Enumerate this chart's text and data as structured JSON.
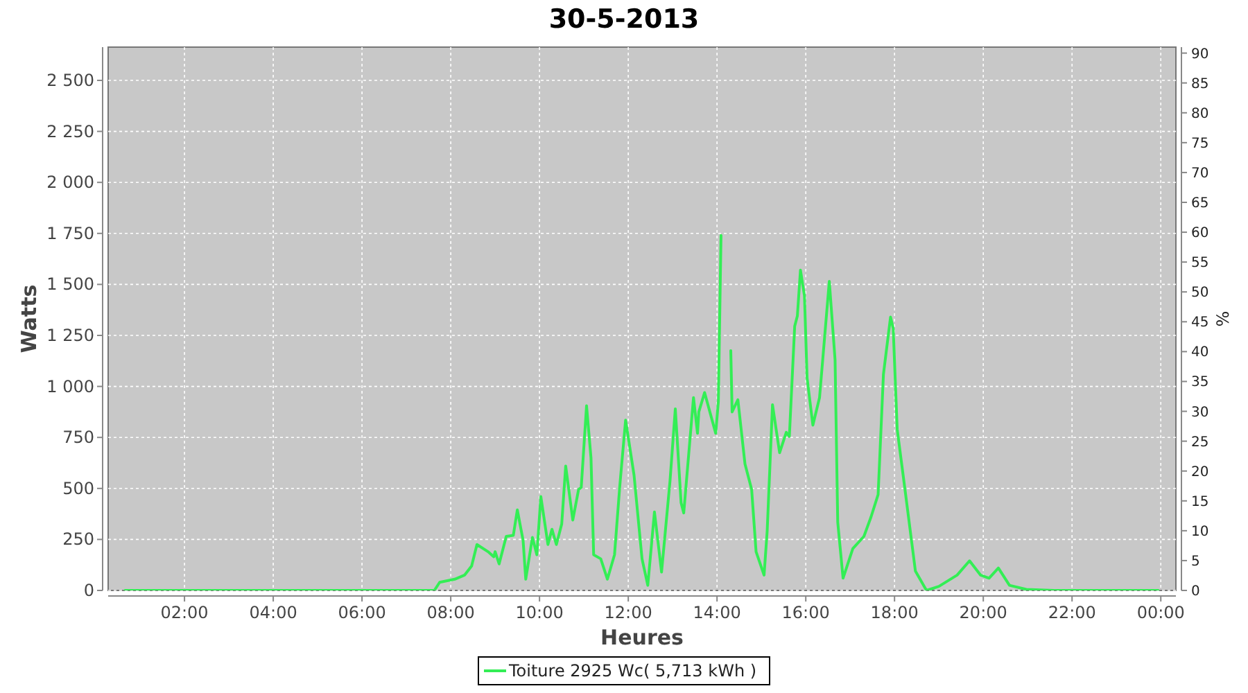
{
  "chart_data": {
    "type": "line",
    "title": "30-5-2013",
    "xlabel": "Heures",
    "ylabel": "Watts",
    "y2label": "%",
    "xlim": [
      0.28,
      24.34
    ],
    "ylim": [
      0,
      2663
    ],
    "y2lim": [
      0,
      91
    ],
    "xticks": [
      {
        "value": 2,
        "label": "02:00"
      },
      {
        "value": 4,
        "label": "04:00"
      },
      {
        "value": 6,
        "label": "06:00"
      },
      {
        "value": 8,
        "label": "08:00"
      },
      {
        "value": 10,
        "label": "10:00"
      },
      {
        "value": 12,
        "label": "12:00"
      },
      {
        "value": 14,
        "label": "14:00"
      },
      {
        "value": 16,
        "label": "16:00"
      },
      {
        "value": 18,
        "label": "18:00"
      },
      {
        "value": 20,
        "label": "20:00"
      },
      {
        "value": 22,
        "label": "22:00"
      },
      {
        "value": 24,
        "label": "00:00"
      }
    ],
    "yticks": [
      0,
      250,
      500,
      750,
      {
        "value": 1000,
        "label": "1 000"
      },
      {
        "value": 1250,
        "label": "1 250"
      },
      {
        "value": 1500,
        "label": "1 500"
      },
      {
        "value": 1750,
        "label": "1 750"
      },
      {
        "value": 2000,
        "label": "2 000"
      },
      {
        "value": 2250,
        "label": "2 250"
      },
      {
        "value": 2500,
        "label": "2 500"
      }
    ],
    "y2ticks": [
      0,
      5,
      10,
      15,
      20,
      25,
      30,
      35,
      40,
      45,
      50,
      55,
      60,
      65,
      70,
      75,
      80,
      85,
      90
    ],
    "grid": true,
    "legend": "bottom",
    "marker": "none",
    "line_style": "solid",
    "series": [
      {
        "name": "Toiture 2925 Wc( 5,713 kWh )",
        "color": "#33ee55",
        "x": [
          0.66,
          7.22,
          7.63,
          7.75,
          8.09,
          8.31,
          8.47,
          8.59,
          8.84,
          8.97,
          9.0,
          9.09,
          9.25,
          9.41,
          9.5,
          9.63,
          9.69,
          9.84,
          9.94,
          10.03,
          10.19,
          10.28,
          10.38,
          10.5,
          10.59,
          10.75,
          10.88,
          10.94,
          11.06,
          11.16,
          11.22,
          11.38,
          11.53,
          11.69,
          11.81,
          11.94,
          12.13,
          12.31,
          12.44,
          12.59,
          12.75,
          12.94,
          13.06,
          13.19,
          13.25,
          13.47,
          13.56,
          13.59,
          13.72,
          13.97,
          14.03,
          14.09,
          14.16,
          14.19,
          14.31,
          14.34,
          14.47,
          14.63,
          14.78,
          14.88,
          15.06,
          15.13,
          15.25,
          15.41,
          15.56,
          15.63,
          15.75,
          15.81,
          15.88,
          15.97,
          16.03,
          16.16,
          16.31,
          16.53,
          16.66,
          16.72,
          16.84,
          17.06,
          17.31,
          17.47,
          17.63,
          17.75,
          17.91,
          17.97,
          18.06,
          18.25,
          18.47,
          18.72,
          19.0,
          19.41,
          19.69,
          19.94,
          20.13,
          20.34,
          20.59,
          20.97,
          21.59,
          23.94
        ],
        "values": [
          0,
          0,
          0,
          40,
          55,
          75,
          120,
          225,
          190,
          165,
          190,
          130,
          265,
          270,
          395,
          245,
          55,
          260,
          175,
          460,
          225,
          300,
          225,
          325,
          610,
          345,
          495,
          505,
          905,
          650,
          175,
          155,
          55,
          175,
          515,
          835,
          565,
          155,
          25,
          385,
          90,
          535,
          890,
          430,
          380,
          945,
          770,
          875,
          970,
          770,
          925,
          1740,
          null,
          null,
          1175,
          875,
          935,
          620,
          495,
          190,
          75,
          290,
          910,
          675,
          775,
          755,
          1295,
          1345,
          1570,
          1445,
          1040,
          810,
          945,
          1515,
          1130,
          335,
          60,
          205,
          265,
          360,
          470,
          1060,
          1340,
          1285,
          790,
          470,
          95,
          0,
          20,
          75,
          145,
          75,
          60,
          110,
          25,
          5,
          0,
          0
        ]
      }
    ]
  }
}
